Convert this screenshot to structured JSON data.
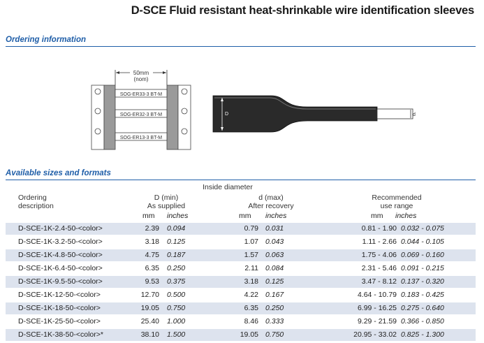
{
  "title": "D-SCE Fluid resistant heat-shrinkable wire identification sleeves",
  "sections": {
    "ordering": "Ordering information",
    "sizes": "Available sizes and formats"
  },
  "diagram": {
    "dimension_label_1": "50mm",
    "dimension_label_2": "(nom)",
    "sleeve_labels": [
      "SOG-ER33-3 BT-M",
      "SOG-ER32-3 BT-M",
      "SOG-ER13-3 BT-M"
    ],
    "big_d": "D",
    "small_d": "d"
  },
  "table": {
    "group_header": "Inside diameter",
    "col1": [
      "Ordering",
      "description"
    ],
    "col2": [
      "D (min)",
      "As supplied"
    ],
    "col3": [
      "d (max)",
      "After recovery"
    ],
    "col4": [
      "Recommended",
      "use range"
    ],
    "unit_mm": "mm",
    "unit_in": "inches",
    "rows": [
      {
        "desc": "D-SCE-1K-2.4-50-<color>",
        "D_mm": "2.39",
        "D_in": "0.094",
        "d_mm": "0.79",
        "d_in": "0.031",
        "r_mm": "0.81 - 1.90",
        "r_in": "0.032 - 0.075"
      },
      {
        "desc": "D-SCE-1K-3.2-50-<color>",
        "D_mm": "3.18",
        "D_in": "0.125",
        "d_mm": "1.07",
        "d_in": "0.043",
        "r_mm": "1.11 - 2.66",
        "r_in": "0.044 - 0.105"
      },
      {
        "desc": "D-SCE-1K-4.8-50-<color>",
        "D_mm": "4.75",
        "D_in": "0.187",
        "d_mm": "1.57",
        "d_in": "0.063",
        "r_mm": "1.75 - 4.06",
        "r_in": "0.069 - 0.160"
      },
      {
        "desc": "D-SCE-1K-6.4-50-<color>",
        "D_mm": "6.35",
        "D_in": "0.250",
        "d_mm": "2.11",
        "d_in": "0.084",
        "r_mm": "2.31 - 5.46",
        "r_in": "0.091 - 0.215"
      },
      {
        "desc": "D-SCE-1K-9.5-50-<color>",
        "D_mm": "9.53",
        "D_in": "0.375",
        "d_mm": "3.18",
        "d_in": "0.125",
        "r_mm": "3.47 - 8.12",
        "r_in": "0.137 - 0.320"
      },
      {
        "desc": "D-SCE-1K-12-50-<color>",
        "D_mm": "12.70",
        "D_in": "0.500",
        "d_mm": "4.22",
        "d_in": "0.167",
        "r_mm": "4.64 - 10.79",
        "r_in": "0.183 - 0.425"
      },
      {
        "desc": "D-SCE-1K-18-50-<color>",
        "D_mm": "19.05",
        "D_in": "0.750",
        "d_mm": "6.35",
        "d_in": "0.250",
        "r_mm": "6.99 - 16.25",
        "r_in": "0.275 - 0.640"
      },
      {
        "desc": "D-SCE-1K-25-50-<color>",
        "D_mm": "25.40",
        "D_in": "1.000",
        "d_mm": "8.46",
        "d_in": "0.333",
        "r_mm": "9.29 - 21.59",
        "r_in": "0.366 - 0.850"
      },
      {
        "desc": "D-SCE-1K-38-50-<color>*",
        "D_mm": "38.10",
        "D_in": "1.500",
        "d_mm": "19.05",
        "d_in": "0.750",
        "r_mm": "20.95 - 33.02",
        "r_in": "0.825 - 1.300"
      }
    ]
  }
}
